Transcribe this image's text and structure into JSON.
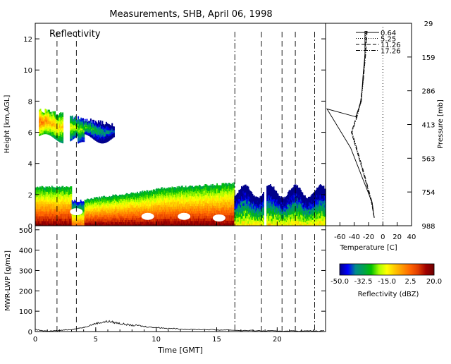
{
  "title": "Measurements, SHB, April 06, 1998",
  "chart_data": [
    {
      "type": "heatmap",
      "panel_label": "Reflectivity",
      "ylabel": "Height [km,AGL]",
      "xlim": [
        0,
        24
      ],
      "ylim": [
        0,
        13
      ],
      "yticks": [
        "0",
        "2",
        "4",
        "6",
        "8",
        "10",
        "12"
      ],
      "grid": false,
      "layers": [
        {
          "x_start": 0.3,
          "x_end": 6.5,
          "base_km": 5.6,
          "top_km": 7.6,
          "peak_dbz": 5
        },
        {
          "x_start": 0.0,
          "x_end": 24.0,
          "base_km": 0.0,
          "top_km": 2.8,
          "peak_dbz": 20
        }
      ],
      "vertical_markers": [
        {
          "x": 1.8,
          "style": "dashed"
        },
        {
          "x": 3.4,
          "style": "dashed"
        },
        {
          "x": 16.5,
          "style": "dash-dot"
        },
        {
          "x": 18.7,
          "style": "dashed"
        },
        {
          "x": 20.4,
          "style": "dashed"
        },
        {
          "x": 21.5,
          "style": "dashed"
        },
        {
          "x": 23.1,
          "style": "dash-dot"
        }
      ]
    },
    {
      "type": "line",
      "ylabel": "MWR-LWP [g/m2]",
      "xlabel": "Time [GMT]",
      "xlim": [
        0,
        24
      ],
      "ylim": [
        0,
        520
      ],
      "xticks": [
        "0",
        "5",
        "10",
        "15",
        "20"
      ],
      "yticks": [
        "0",
        "100",
        "200",
        "300",
        "400",
        "500"
      ],
      "series": [
        {
          "x": [
            0,
            0.5,
            1,
            1.5,
            2,
            2.5,
            3,
            3.5,
            4,
            4.5,
            5,
            5.5,
            6,
            6.5,
            7,
            7.5,
            8,
            8.5,
            9,
            9.5,
            10,
            10.5,
            11,
            11.5,
            12,
            13,
            14,
            15,
            16,
            17,
            18,
            19,
            20,
            21,
            22,
            23,
            24
          ],
          "y": [
            10,
            5,
            3,
            3,
            5,
            8,
            10,
            15,
            20,
            30,
            40,
            45,
            50,
            45,
            40,
            35,
            30,
            30,
            25,
            22,
            20,
            18,
            15,
            15,
            12,
            10,
            10,
            8,
            8,
            5,
            5,
            3,
            3,
            3,
            3,
            3,
            3
          ]
        }
      ]
    },
    {
      "type": "line",
      "xlabel": "Temperature [C]",
      "ylabel": "Pressure [mb]",
      "xlim": [
        -80,
        40
      ],
      "xticks": [
        "-60",
        "-40",
        "-20",
        "0",
        "20",
        "40"
      ],
      "yticks": [
        "29",
        "159",
        "286",
        "413",
        "563",
        "754",
        "988"
      ],
      "series": [
        {
          "name": "0.64",
          "temp": [
            -25,
            -25,
            -28,
            -30,
            -38,
            -78,
            -45,
            -28,
            -15,
            -12
          ],
          "height_km": [
            12.5,
            11,
            9.5,
            8,
            7,
            7.5,
            5,
            3,
            1.5,
            0.5
          ]
        },
        {
          "name": "5.25",
          "temp": [
            -24,
            -25,
            -27,
            -30,
            -36,
            -44,
            -28,
            -16,
            -12
          ],
          "height_km": [
            12.5,
            11,
            9.5,
            8,
            7,
            6,
            3.5,
            1.5,
            0.5
          ]
        },
        {
          "name": "11.26",
          "temp": [
            -23,
            -25,
            -27,
            -31,
            -37,
            -44,
            -28,
            -16,
            -12
          ],
          "height_km": [
            12.5,
            11,
            9.5,
            8,
            7,
            6,
            3.5,
            1.5,
            0.5
          ]
        },
        {
          "name": "17.26",
          "temp": [
            -22,
            -24,
            -27,
            -31,
            -36,
            -43,
            -27,
            -15,
            -12
          ],
          "height_km": [
            12.5,
            11,
            9.5,
            8,
            7,
            6,
            3.5,
            1.5,
            0.5
          ]
        }
      ]
    }
  ],
  "colorbar": {
    "label": "Reflectivity (dBZ)",
    "ticks": [
      "-50.0",
      "-32.5",
      "-15.0",
      "2.5",
      "20.0"
    ],
    "range": [
      -50,
      20
    ],
    "colors": [
      "#00008b",
      "#0000ff",
      "#008b8b",
      "#00a050",
      "#00c000",
      "#aaff00",
      "#ffff00",
      "#ffc800",
      "#ff9600",
      "#ff6400",
      "#e03c00",
      "#a00000",
      "#6e0000"
    ]
  }
}
